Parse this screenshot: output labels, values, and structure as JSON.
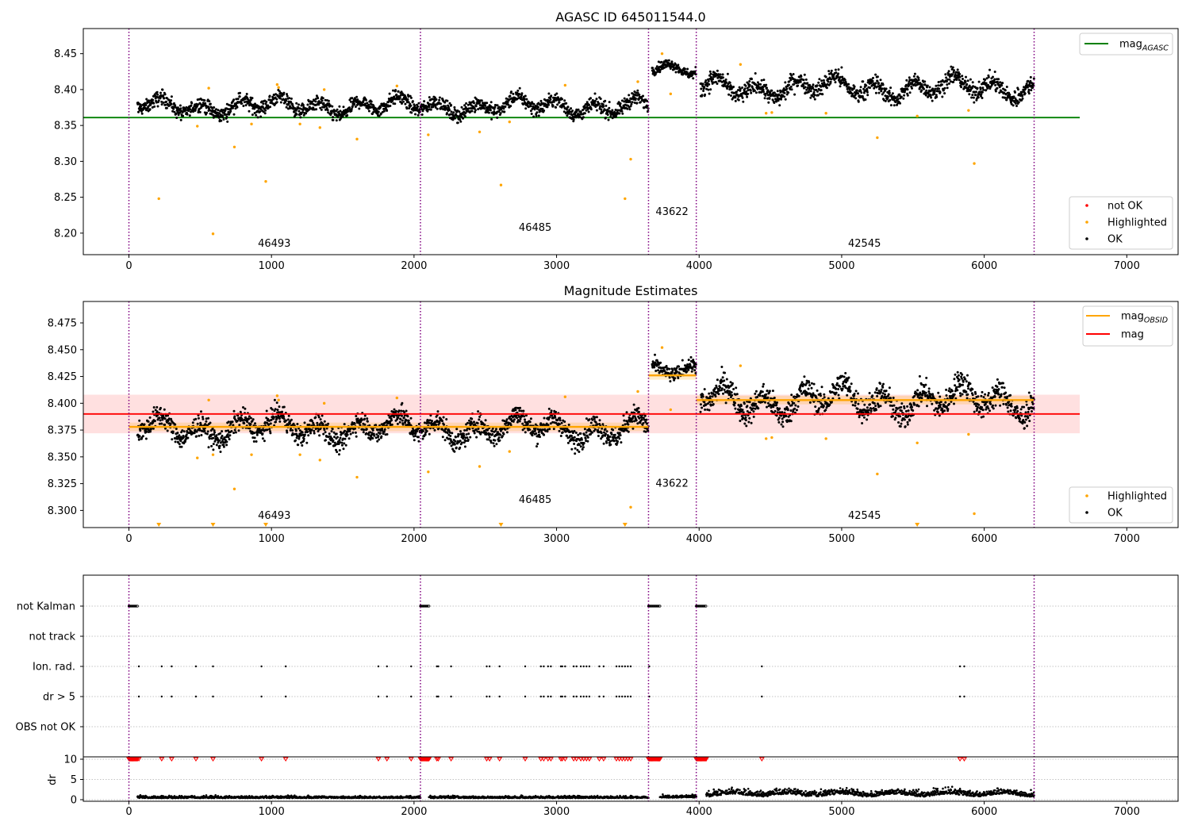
{
  "chart_data": [
    {
      "type": "scatter",
      "title": "AGASC ID 645011544.0",
      "xlabel": "",
      "ylabel": "",
      "xlim": [
        -320,
        7360
      ],
      "ylim": [
        8.17,
        8.485
      ],
      "xticks": [
        0,
        1000,
        2000,
        3000,
        4000,
        5000,
        6000,
        7000
      ],
      "xtick_labels": [
        "0",
        "1000",
        "2000",
        "3000",
        "4000",
        "5000",
        "6000",
        "7000"
      ],
      "yticks": [
        8.2,
        8.25,
        8.3,
        8.35,
        8.4,
        8.45
      ],
      "ytick_labels": [
        "8.20",
        "8.25",
        "8.30",
        "8.35",
        "8.40",
        "8.45"
      ],
      "grid": false,
      "obs_boundaries": [
        0,
        2045,
        3645,
        3980,
        6350
      ],
      "obs_labels": [
        {
          "text": "46493",
          "x": 1020,
          "y": 8.181
        },
        {
          "text": "46485",
          "x": 2850,
          "y": 8.203
        },
        {
          "text": "43622",
          "x": 3810,
          "y": 8.225
        },
        {
          "text": "42545",
          "x": 5160,
          "y": 8.181
        }
      ],
      "lines": [
        {
          "name": "mag_AGASC",
          "y": 8.361,
          "x": [
            -320,
            6670
          ],
          "color": "#008000"
        }
      ],
      "series": [
        {
          "name": "OK",
          "color": "#000000",
          "segments": [
            {
              "x": [
                60,
                3645
              ],
              "mean": 8.377,
              "spread": 0.009
            },
            {
              "x": [
                3670,
                3980
              ],
              "mean": 8.428,
              "spread": 0.006
            },
            {
              "x": [
                4010,
                6350
              ],
              "mean": 8.403,
              "spread": 0.011
            }
          ]
        },
        {
          "name": "Highlighted",
          "color": "#ffa500",
          "x": [
            210,
            480,
            560,
            590,
            740,
            860,
            960,
            1040,
            1050,
            1200,
            1340,
            1370,
            1600,
            1880,
            2100,
            2460,
            2610,
            2670,
            3060,
            3480,
            3520,
            3570,
            3740,
            3800,
            4290,
            4470,
            4510,
            4890,
            5250,
            5530,
            5890,
            5930
          ],
          "y": [
            8.248,
            8.349,
            8.402,
            8.199,
            8.32,
            8.352,
            8.272,
            8.407,
            8.403,
            8.352,
            8.347,
            8.4,
            8.331,
            8.405,
            8.337,
            8.341,
            8.267,
            8.355,
            8.406,
            8.248,
            8.303,
            8.411,
            8.45,
            8.394,
            8.435,
            8.367,
            8.368,
            8.367,
            8.333,
            8.363,
            8.371,
            8.297
          ]
        },
        {
          "name": "not OK",
          "color": "#ff0000",
          "x": [],
          "y": []
        }
      ],
      "legends": [
        {
          "position": "top-right",
          "entries": [
            {
              "label": "mag",
              "sub": "AGASC",
              "color": "#008000",
              "marker": "line"
            }
          ]
        },
        {
          "position": "bottom-right",
          "entries": [
            {
              "label": "not OK",
              "color": "#ff0000",
              "marker": "dot"
            },
            {
              "label": "Highlighted",
              "color": "#ffa500",
              "marker": "dot"
            },
            {
              "label": "OK",
              "color": "#000000",
              "marker": "dot"
            }
          ]
        }
      ]
    },
    {
      "type": "scatter",
      "title": "Magnitude Estimates",
      "xlabel": "",
      "ylabel": "",
      "xlim": [
        -320,
        7360
      ],
      "ylim": [
        8.284,
        8.495
      ],
      "xticks": [
        0,
        1000,
        2000,
        3000,
        4000,
        5000,
        6000,
        7000
      ],
      "xtick_labels": [
        "0",
        "1000",
        "2000",
        "3000",
        "4000",
        "5000",
        "6000",
        "7000"
      ],
      "yticks": [
        8.3,
        8.325,
        8.35,
        8.375,
        8.4,
        8.425,
        8.45,
        8.475
      ],
      "ytick_labels": [
        "8.300",
        "8.325",
        "8.350",
        "8.375",
        "8.400",
        "8.425",
        "8.450",
        "8.475"
      ],
      "grid": false,
      "obs_boundaries": [
        0,
        2045,
        3645,
        3980,
        6350
      ],
      "obs_labels": [
        {
          "text": "46493",
          "x": 1020,
          "y": 8.292
        },
        {
          "text": "46485",
          "x": 2850,
          "y": 8.307
        },
        {
          "text": "43622",
          "x": 3810,
          "y": 8.322
        },
        {
          "text": "42545",
          "x": 5160,
          "y": 8.292
        }
      ],
      "mag": {
        "value": 8.39,
        "band": [
          8.372,
          8.408
        ],
        "x": [
          -320,
          6670
        ],
        "color": "#ff0000"
      },
      "mag_obsid": [
        {
          "x": [
            0,
            3645
          ],
          "value": 8.378
        },
        {
          "x": [
            3645,
            3980
          ],
          "value": 8.426
        },
        {
          "x": [
            3980,
            6350
          ],
          "value": 8.403
        }
      ],
      "series": [
        {
          "name": "OK",
          "color": "#000000",
          "segments": [
            {
              "x": [
                60,
                3645
              ],
              "mean": 8.377,
              "spread": 0.009
            },
            {
              "x": [
                3670,
                3980
              ],
              "mean": 8.428,
              "spread": 0.006
            },
            {
              "x": [
                4010,
                6350
              ],
              "mean": 8.403,
              "spread": 0.011
            }
          ]
        },
        {
          "name": "Highlighted",
          "color": "#ffa500",
          "x": [
            480,
            560,
            590,
            740,
            860,
            1040,
            1050,
            1200,
            1340,
            1370,
            1600,
            1880,
            2100,
            2460,
            2670,
            3060,
            3520,
            3570,
            3740,
            3800,
            4290,
            4470,
            4510,
            4890,
            5250,
            5530,
            5890,
            5930
          ],
          "y": [
            8.349,
            8.403,
            8.352,
            8.32,
            8.352,
            8.407,
            8.403,
            8.352,
            8.347,
            8.4,
            8.331,
            8.405,
            8.336,
            8.341,
            8.355,
            8.406,
            8.303,
            8.411,
            8.452,
            8.394,
            8.435,
            8.367,
            8.368,
            8.367,
            8.334,
            8.363,
            8.371,
            8.297
          ]
        },
        {
          "name": "Highlighted (below axis)",
          "color": "#ffa500",
          "x": [
            210,
            590,
            960,
            2610,
            3480,
            5530
          ]
        }
      ],
      "legends": [
        {
          "position": "top-right",
          "entries": [
            {
              "label": "mag",
              "sub": "OBSID",
              "color": "#ffa500",
              "marker": "line"
            },
            {
              "label": "mag",
              "sub": "",
              "color": "#ff0000",
              "marker": "line"
            }
          ]
        },
        {
          "position": "bottom-right",
          "entries": [
            {
              "label": "Highlighted",
              "color": "#ffa500",
              "marker": "dot"
            },
            {
              "label": "OK",
              "color": "#000000",
              "marker": "dot"
            }
          ]
        }
      ]
    },
    {
      "type": "scatter",
      "title": "",
      "xlabel": "",
      "xlim": [
        -320,
        7360
      ],
      "xticks": [
        0,
        1000,
        2000,
        3000,
        4000,
        5000,
        6000,
        7000
      ],
      "xtick_labels": [
        "0",
        "1000",
        "2000",
        "3000",
        "4000",
        "5000",
        "6000",
        "7000"
      ],
      "obs_boundaries": [
        0,
        2045,
        3645,
        3980,
        6350
      ],
      "flag_rows": [
        {
          "label": "not Kalman",
          "x_ranges": [
            [
              0,
              60
            ],
            [
              2045,
              2105
            ],
            [
              3645,
              3725
            ],
            [
              3980,
              4050
            ]
          ]
        },
        {
          "label": "not track",
          "x": []
        },
        {
          "label": "Ion. rad.",
          "x": [
            70,
            230,
            300,
            470,
            590,
            930,
            1100,
            1750,
            1810,
            1980,
            2160,
            2170,
            2260,
            2510,
            2530,
            2600,
            2780,
            2890,
            2910,
            2940,
            2960,
            3030,
            3040,
            3060,
            3120,
            3140,
            3170,
            3190,
            3210,
            3230,
            3300,
            3330,
            3420,
            3440,
            3460,
            3480,
            3500,
            3520,
            3650,
            4440,
            5830,
            5860
          ]
        },
        {
          "label": "dr > 5",
          "x": [
            70,
            230,
            300,
            470,
            590,
            930,
            1100,
            1750,
            1810,
            1980,
            2160,
            2170,
            2260,
            2510,
            2530,
            2600,
            2780,
            2890,
            2910,
            2940,
            2960,
            3030,
            3040,
            3060,
            3120,
            3140,
            3170,
            3190,
            3210,
            3230,
            3300,
            3330,
            3420,
            3440,
            3460,
            3480,
            3500,
            3520,
            3650,
            4440,
            5830,
            5860
          ]
        },
        {
          "label": "OBS not OK",
          "x": []
        }
      ],
      "dr": {
        "ylabel": "dr",
        "ylim": [
          0,
          10
        ],
        "yticks": [
          0,
          5,
          10
        ],
        "ytick_labels": [
          "0",
          "5",
          "10"
        ],
        "clipped_color": "#ff0000",
        "clipped_x_ranges": [
          [
            0,
            60
          ],
          [
            2045,
            2105
          ],
          [
            3645,
            3725
          ],
          [
            3980,
            4050
          ]
        ],
        "clipped_x": [
          70,
          230,
          300,
          470,
          590,
          930,
          1100,
          1750,
          1810,
          1980,
          2160,
          2170,
          2260,
          2510,
          2530,
          2600,
          2780,
          2890,
          2910,
          2940,
          2960,
          3030,
          3040,
          3060,
          3120,
          3140,
          3170,
          3190,
          3210,
          3230,
          3300,
          3330,
          3420,
          3440,
          3460,
          3480,
          3500,
          3520,
          3650,
          4440,
          5830,
          5860
        ],
        "segments": [
          {
            "x": [
              60,
              2045
            ],
            "mean": 0.4
          },
          {
            "x": [
              2105,
              3645
            ],
            "mean": 0.4
          },
          {
            "x": [
              3725,
              3980
            ],
            "mean": 0.5
          },
          {
            "x": [
              4050,
              6350
            ],
            "mean": 1.1
          }
        ]
      }
    }
  ]
}
